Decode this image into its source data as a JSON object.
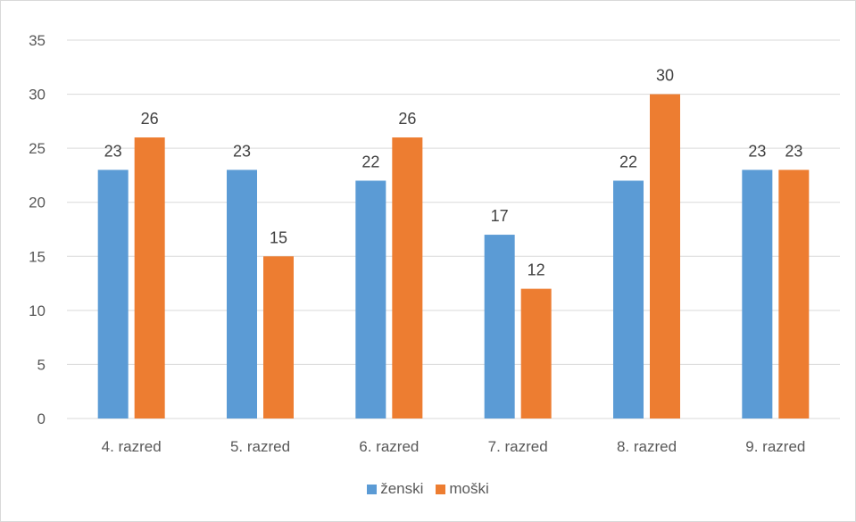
{
  "chart_data": {
    "type": "bar",
    "title": "",
    "xlabel": "",
    "ylabel": "",
    "categories": [
      "4. razred",
      "5. razred",
      "6. razred",
      "7. razred",
      "8. razred",
      "9. razred"
    ],
    "series": [
      {
        "name": "ženski",
        "values": [
          23,
          23,
          22,
          17,
          22,
          23
        ],
        "color": "#5b9bd5"
      },
      {
        "name": "moški",
        "values": [
          26,
          15,
          26,
          12,
          30,
          23
        ],
        "color": "#ed7d31"
      }
    ],
    "ylim": [
      0,
      35
    ],
    "yticks": [
      0,
      5,
      10,
      15,
      20,
      25,
      30,
      35
    ],
    "grid": true,
    "data_labels": true,
    "legend_position": "bottom",
    "gridline_color": "#d9d9d9"
  }
}
